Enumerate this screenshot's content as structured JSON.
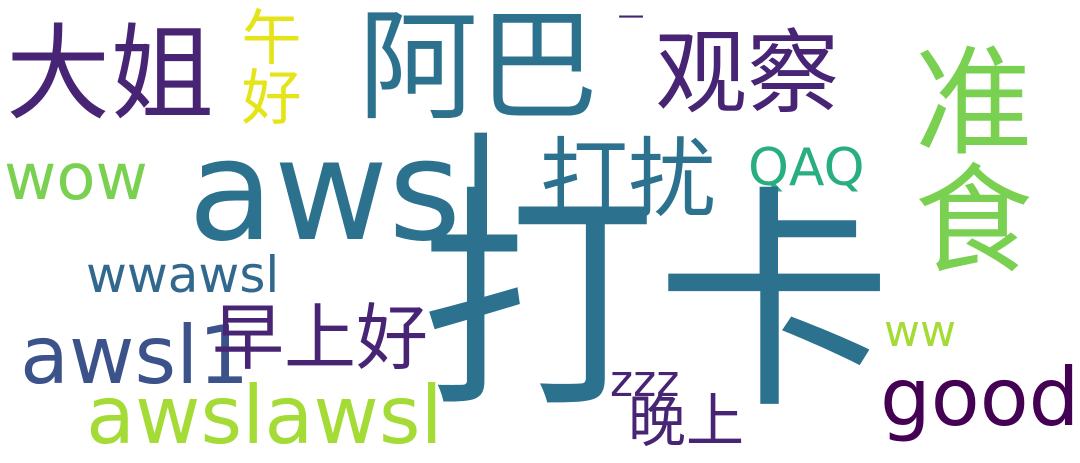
{
  "words": {
    "w_daka": "打卡",
    "w_awsl_big": "awsl",
    "w_aba": "阿巴",
    "w_dajie": "大姐",
    "w_guancha": "观察",
    "w_zhunshi": "准食",
    "w_dadrao": "打扰",
    "w_wwawsl": "wwawsl",
    "w_awsl1": "awsl1",
    "w_zaoshanghao": "早上好",
    "w_awslawsl": "awslawsl",
    "w_good": "good",
    "w_wow": "wow",
    "w_qaq": "QAQ",
    "w_wuhao": "午好",
    "w_ww": "ww",
    "w_zzz": "zzz",
    "w_wanshang": "晚上",
    "w_dash": "一"
  },
  "colors": {
    "dark_purple": "#482475",
    "teal_blue": "#2c728e",
    "indigo": "#3b528b",
    "green_teal": "#28ae80",
    "green": "#7ad151",
    "lime": "#a5db36",
    "yellow": "#e4e419",
    "deep_purple": "#440154",
    "blue": "#31688e"
  }
}
